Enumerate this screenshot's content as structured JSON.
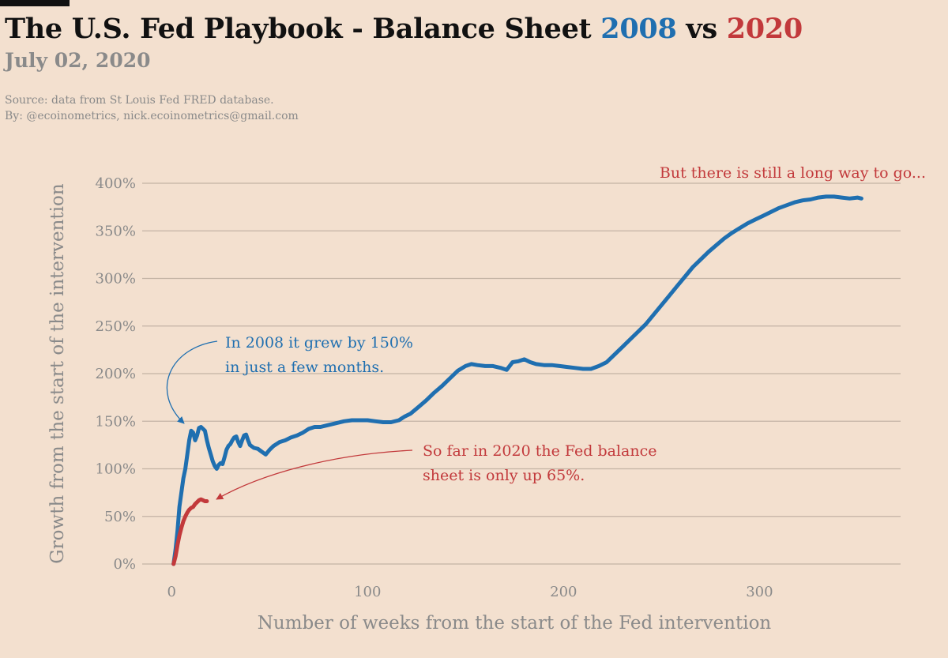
{
  "header": {
    "title_prefix": "The U.S. Fed Playbook - Balance Sheet ",
    "title_2008": "2008",
    "title_vs": " vs ",
    "title_2020": "2020",
    "subtitle": "July 02, 2020",
    "source": "Source: data from  St Louis Fed FRED database.",
    "byline": "By: @ecoinometrics, nick.ecoinometrics@gmail.com"
  },
  "colors": {
    "series_2008": "#1f6fb0",
    "series_2020": "#c2393b",
    "grid": "#c3b3a4",
    "text": "#8a8a8a",
    "background": "#f3e0cf"
  },
  "chart_data": {
    "type": "line",
    "xlabel": "Number of weeks from the start of the Fed intervention",
    "ylabel": "Growth from the start of the intervention",
    "xlim": [
      -15,
      372
    ],
    "ylim": [
      0,
      400
    ],
    "xticks": [
      0,
      100,
      200,
      300
    ],
    "xtick_labels": [
      "0",
      "100",
      "200",
      "300"
    ],
    "yticks": [
      0,
      50,
      100,
      150,
      200,
      250,
      300,
      350,
      400
    ],
    "ytick_labels": [
      "0%",
      "50%",
      "100%",
      "150%",
      "200%",
      "250%",
      "300%",
      "350%",
      "400%"
    ],
    "grid": "horizontal",
    "series": [
      {
        "name": "2008",
        "color": "#1f6fb0",
        "points": [
          [
            1,
            0
          ],
          [
            2,
            15
          ],
          [
            3,
            35
          ],
          [
            4,
            60
          ],
          [
            5,
            75
          ],
          [
            6,
            90
          ],
          [
            7,
            100
          ],
          [
            8,
            115
          ],
          [
            9,
            130
          ],
          [
            10,
            140
          ],
          [
            11,
            138
          ],
          [
            12,
            130
          ],
          [
            13,
            135
          ],
          [
            14,
            143
          ],
          [
            15,
            144
          ],
          [
            16,
            142
          ],
          [
            17,
            140
          ],
          [
            18,
            130
          ],
          [
            19,
            122
          ],
          [
            20,
            115
          ],
          [
            21,
            108
          ],
          [
            22,
            103
          ],
          [
            23,
            100
          ],
          [
            24,
            104
          ],
          [
            25,
            106
          ],
          [
            26,
            105
          ],
          [
            27,
            112
          ],
          [
            28,
            120
          ],
          [
            29,
            124
          ],
          [
            30,
            126
          ],
          [
            31,
            130
          ],
          [
            32,
            133
          ],
          [
            33,
            134
          ],
          [
            34,
            128
          ],
          [
            35,
            124
          ],
          [
            36,
            130
          ],
          [
            37,
            135
          ],
          [
            38,
            136
          ],
          [
            39,
            130
          ],
          [
            40,
            125
          ],
          [
            42,
            122
          ],
          [
            44,
            121
          ],
          [
            46,
            118
          ],
          [
            48,
            115
          ],
          [
            50,
            120
          ],
          [
            52,
            124
          ],
          [
            55,
            128
          ],
          [
            58,
            130
          ],
          [
            61,
            133
          ],
          [
            64,
            135
          ],
          [
            67,
            138
          ],
          [
            70,
            142
          ],
          [
            73,
            144
          ],
          [
            76,
            144
          ],
          [
            80,
            146
          ],
          [
            84,
            148
          ],
          [
            88,
            150
          ],
          [
            92,
            151
          ],
          [
            96,
            151
          ],
          [
            100,
            151
          ],
          [
            104,
            150
          ],
          [
            108,
            149
          ],
          [
            112,
            149
          ],
          [
            116,
            151
          ],
          [
            119,
            155
          ],
          [
            122,
            158
          ],
          [
            126,
            165
          ],
          [
            130,
            172
          ],
          [
            134,
            180
          ],
          [
            138,
            187
          ],
          [
            142,
            195
          ],
          [
            146,
            203
          ],
          [
            150,
            208
          ],
          [
            153,
            210
          ],
          [
            156,
            209
          ],
          [
            160,
            208
          ],
          [
            164,
            208
          ],
          [
            168,
            206
          ],
          [
            171,
            204
          ],
          [
            174,
            212
          ],
          [
            177,
            213
          ],
          [
            180,
            215
          ],
          [
            183,
            212
          ],
          [
            186,
            210
          ],
          [
            190,
            209
          ],
          [
            194,
            209
          ],
          [
            198,
            208
          ],
          [
            202,
            207
          ],
          [
            206,
            206
          ],
          [
            210,
            205
          ],
          [
            214,
            205
          ],
          [
            218,
            208
          ],
          [
            222,
            212
          ],
          [
            226,
            220
          ],
          [
            230,
            228
          ],
          [
            234,
            236
          ],
          [
            238,
            244
          ],
          [
            242,
            252
          ],
          [
            246,
            262
          ],
          [
            250,
            272
          ],
          [
            254,
            282
          ],
          [
            258,
            292
          ],
          [
            262,
            302
          ],
          [
            266,
            312
          ],
          [
            270,
            320
          ],
          [
            274,
            328
          ],
          [
            278,
            335
          ],
          [
            282,
            342
          ],
          [
            286,
            348
          ],
          [
            290,
            353
          ],
          [
            294,
            358
          ],
          [
            298,
            362
          ],
          [
            302,
            366
          ],
          [
            306,
            370
          ],
          [
            310,
            374
          ],
          [
            314,
            377
          ],
          [
            318,
            380
          ],
          [
            322,
            382
          ],
          [
            326,
            383
          ],
          [
            330,
            385
          ],
          [
            334,
            386
          ],
          [
            338,
            386
          ],
          [
            342,
            385
          ],
          [
            346,
            384
          ],
          [
            350,
            385
          ],
          [
            352,
            384
          ]
        ]
      },
      {
        "name": "2020",
        "color": "#c2393b",
        "points": [
          [
            1,
            0
          ],
          [
            2,
            8
          ],
          [
            3,
            20
          ],
          [
            4,
            30
          ],
          [
            5,
            38
          ],
          [
            6,
            45
          ],
          [
            7,
            50
          ],
          [
            8,
            54
          ],
          [
            9,
            57
          ],
          [
            10,
            59
          ],
          [
            11,
            60
          ],
          [
            12,
            63
          ],
          [
            13,
            65
          ],
          [
            14,
            67
          ],
          [
            15,
            68
          ],
          [
            16,
            67
          ],
          [
            17,
            66
          ],
          [
            18,
            66
          ]
        ]
      }
    ],
    "annotations": [
      {
        "text_lines": [
          "In 2008 it grew by 150%",
          "in just a few months."
        ],
        "color": "#1f6fb0"
      },
      {
        "text_lines": [
          "So far in 2020 the Fed balance",
          "sheet is only up 65%."
        ],
        "color": "#c2393b"
      },
      {
        "text_lines": [
          "But there is still a long way to go..."
        ],
        "color": "#c2393b"
      }
    ]
  }
}
